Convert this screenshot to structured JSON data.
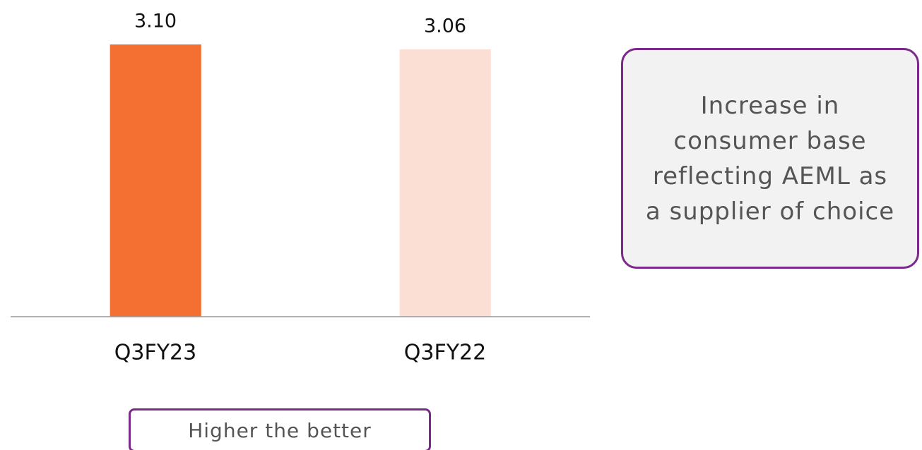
{
  "chart_data": {
    "type": "bar",
    "categories": [
      "Q3FY23",
      "Q3FY22"
    ],
    "values": [
      3.1,
      3.06
    ],
    "value_labels": [
      "3.10",
      "3.06"
    ],
    "colors": [
      "#f37032",
      "#fbdfd4"
    ],
    "ylim": [
      0.9,
      3.2
    ],
    "annotation": "Increase in consumer base reflecting AEML as a supplier of choice",
    "footnote": "Higher the better"
  }
}
